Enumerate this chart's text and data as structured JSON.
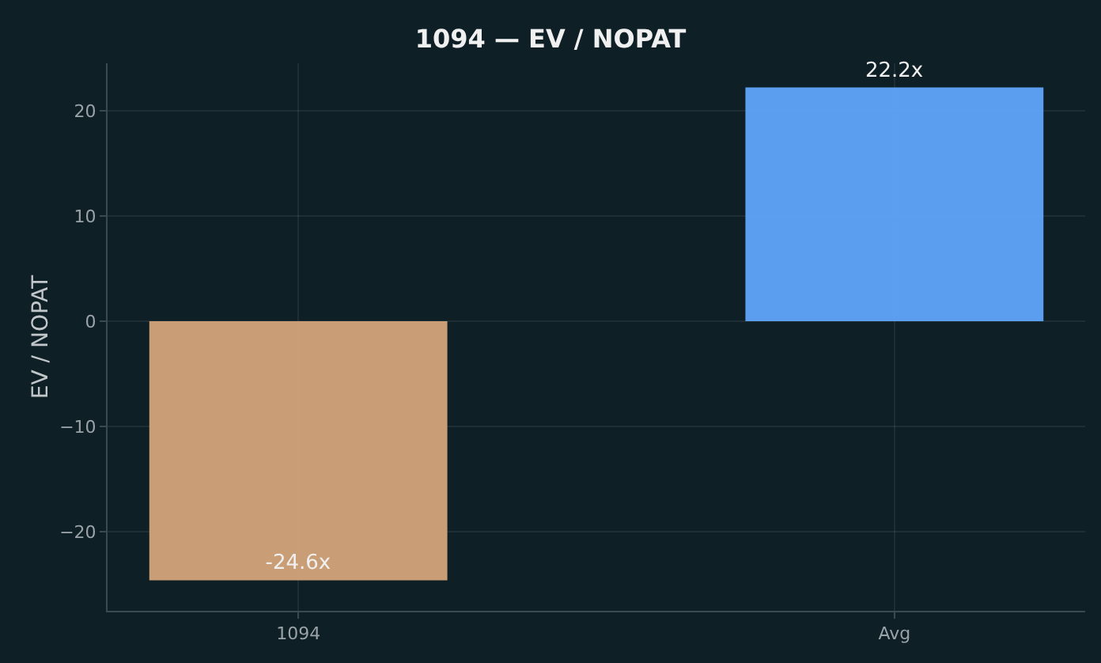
{
  "chart_data": {
    "type": "bar",
    "title": "1094 — EV / NOPAT",
    "ylabel": "EV / NOPAT",
    "categories": [
      "1094",
      "Avg"
    ],
    "values": [
      -24.6,
      22.2
    ],
    "colors": [
      "#d4a57a",
      "#60a5fa"
    ],
    "value_labels": [
      "-24.6x",
      "22.2x"
    ],
    "ylim": [
      -27.5,
      24.5
    ],
    "yticks": [
      -20,
      -10,
      0,
      10,
      20
    ],
    "grid": true,
    "legend": false
  }
}
